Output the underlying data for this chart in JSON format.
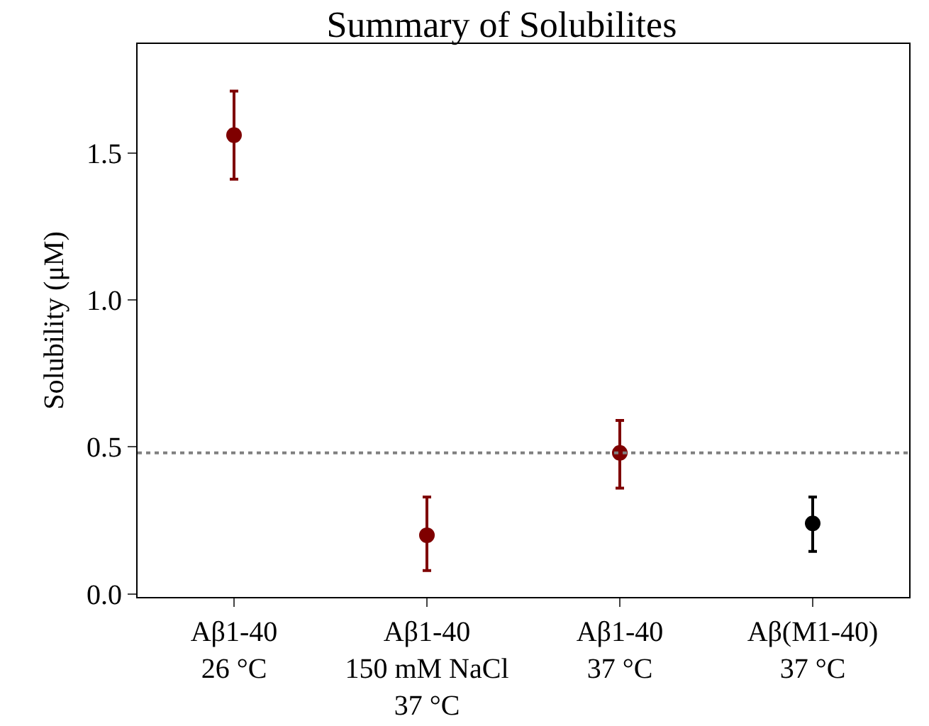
{
  "chart_data": {
    "type": "scatter",
    "title": "Summary of Solubilites",
    "ylabel": "Solubility (μM)",
    "categories": [
      "Aβ1-40\n26 °C",
      "Aβ1-40\n150 mM NaCl\n37 °C",
      "Aβ1-40\n37 °C",
      "Aβ(M1-40)\n37 °C"
    ],
    "values": [
      1.56,
      0.2,
      0.48,
      0.24
    ],
    "colors": [
      "#7f0000",
      "#7f0000",
      "#7f0000",
      "#000000"
    ],
    "errors": [
      [
        1.41,
        1.71
      ],
      [
        0.08,
        0.33
      ],
      [
        0.36,
        0.59
      ],
      [
        0.145,
        0.33
      ]
    ],
    "ylim": [
      -0.01,
      1.87
    ],
    "yticks": [
      {
        "value": 0,
        "label": "0.0"
      },
      {
        "value": 0.5,
        "label": "0.5"
      },
      {
        "value": 1,
        "label": "1.0"
      },
      {
        "value": 1.5,
        "label": "1.5"
      }
    ],
    "ref_lines": [
      {
        "axis": "y",
        "value": 0.48,
        "label": null,
        "color": "#808080",
        "line_style": "dotted"
      }
    ],
    "marker": "circle",
    "grid": false
  }
}
